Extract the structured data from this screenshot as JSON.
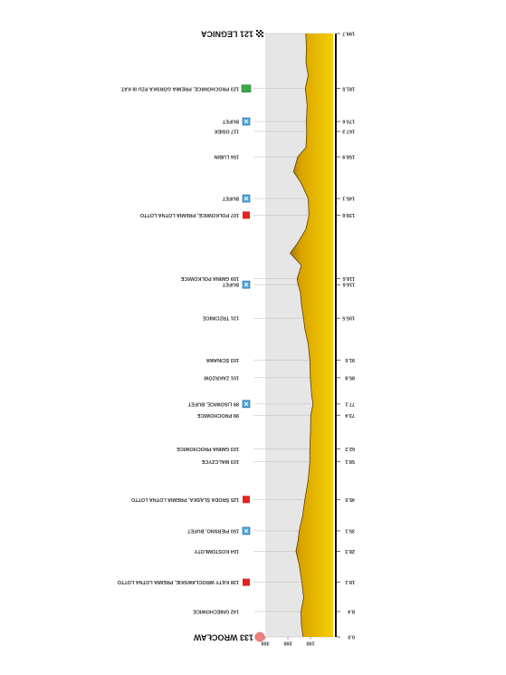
{
  "chart_data": {
    "type": "profile",
    "km": [
      0,
      4,
      8.4,
      13,
      18.1,
      24,
      28.3,
      32,
      35.1,
      40,
      45.5,
      52,
      58.1,
      62.3,
      68,
      73.4,
      77.1,
      80,
      85.8,
      91.6,
      97,
      102,
      105.5,
      110,
      114,
      116.6,
      118.6,
      123,
      127,
      130,
      135,
      139.6,
      145.1,
      150,
      154,
      158.9,
      162,
      167.3,
      170.6,
      176,
      181.5,
      186,
      190,
      195,
      199.7
    ],
    "elevation": [
      133,
      140,
      142,
      130,
      138,
      150,
      164,
      155,
      150,
      135,
      125,
      110,
      103,
      103,
      100,
      99,
      89,
      95,
      101,
      103,
      110,
      125,
      131,
      140,
      145,
      155,
      159,
      140,
      190,
      160,
      120,
      107,
      110,
      140,
      175,
      156,
      120,
      117,
      118,
      115,
      123,
      110,
      120,
      118,
      121
    ],
    "color": "#e8b400",
    "xlim": [
      0,
      199.7
    ],
    "xticks": [
      {
        "value": 0,
        "label": "0.0"
      },
      8.4,
      18.1,
      28.3,
      35.1,
      45.5,
      58.1,
      62.3,
      73.4,
      77.1,
      85.8,
      91.6,
      105.5,
      116.6,
      118.6,
      139.6,
      145.1,
      158.9,
      167.3,
      170.6,
      181.5,
      199.7
    ],
    "ylim": [
      0,
      300
    ],
    "yticks": [
      100,
      200,
      300
    ],
    "annotations": [
      {
        "x": 0,
        "text": "133 WROCŁAW",
        "icon": "start"
      },
      {
        "x": 8.4,
        "text": "142 GNIECHOWICE"
      },
      {
        "x": 18.1,
        "text": "138 KĄTY WROCŁAWSKIE, PREMIA LOTNA LOTTO",
        "icon": "sprint"
      },
      {
        "x": 28.3,
        "text": "164 KOSTOMŁOTY"
      },
      {
        "x": 35.1,
        "text": "150 PIERSNO, BUFET",
        "icon": "feed"
      },
      {
        "x": 45.5,
        "text": "125 ŚRODA ŚLĄSKA, PREMIA LOTNA LOTTO",
        "icon": "sprint"
      },
      {
        "x": 58.1,
        "text": "103 MALCZYCE"
      },
      {
        "x": 62.3,
        "text": "103 GMINA PROCHOWICE"
      },
      {
        "x": 73.4,
        "text": "99 PROCHOWICE"
      },
      {
        "x": 77.1,
        "text": "89 LISOWICE, BUFET",
        "icon": "feed"
      },
      {
        "x": 85.8,
        "text": "101 ZAKRZÓW"
      },
      {
        "x": 91.6,
        "text": "103 ŚCINAWA"
      },
      {
        "x": 105.5,
        "text": "131 TRZCINICE"
      },
      {
        "x": 116.6,
        "text": "BUFET",
        "icon": "feed"
      },
      {
        "x": 118.6,
        "text": "159 GMINA POLKOWICE"
      },
      {
        "x": 139.6,
        "text": "107 POLKOWICE, PREMIA LOTNA LOTTO",
        "icon": "sprint"
      },
      {
        "x": 145.1,
        "text": "BUFET",
        "icon": "feed"
      },
      {
        "x": 158.9,
        "text": "156 LUBIN"
      },
      {
        "x": 167.3,
        "text": "117 OSIEK"
      },
      {
        "x": 170.6,
        "text": "BUFET",
        "icon": "feed"
      },
      {
        "x": 181.5,
        "text": "123 PROCHOWICE, PREMIA GÓRSKA PZU III KAT.",
        "icon": "climb"
      },
      {
        "x": 199.7,
        "text": "121 LEGNICA",
        "icon": "finish"
      }
    ]
  }
}
